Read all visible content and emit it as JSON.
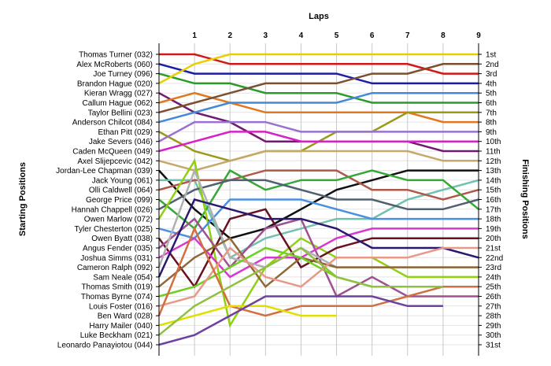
{
  "chart_data": {
    "type": "line",
    "title": "Laps",
    "xlabel": "Laps",
    "ylabel_left": "Starting Positions",
    "ylabel_right": "Finishing Positions",
    "x": [
      0,
      1,
      2,
      3,
      4,
      5,
      6,
      7,
      8,
      9
    ],
    "x_ticks": [
      "1",
      "2",
      "3",
      "4",
      "5",
      "6",
      "7",
      "8",
      "9"
    ],
    "xlim": [
      0,
      9
    ],
    "ylim": [
      1,
      31
    ],
    "grid": true,
    "left_labels": [
      "Thomas Turner (032)",
      "Alex McRoberts (060)",
      "Joe Turney (096)",
      "Brandon Hague (020)",
      "Kieran Wragg (027)",
      "Callum Hague (062)",
      "Taylor Bellini (023)",
      "Anderson Chilcot (084)",
      "Ethan Pitt (029)",
      "Jake Severs (046)",
      "Caden McQueen (049)",
      "Axel Slijepcevic (042)",
      "Jordan-Lee Chapman (039)",
      "Jack Young (061)",
      "Olli Caldwell (064)",
      "George Price (099)",
      "Hannah Chappell (026)",
      "Owen Marlow (072)",
      "Tyler Chesterton (025)",
      "Owen Byatt (038)",
      "Angus Fender (035)",
      "Joshua Simms (031)",
      "Cameron Ralph (092)",
      "Sam Neale (054)",
      "Thomas Smith (019)",
      "Thomas Byrne (074)",
      "Louis Foster (016)",
      "Ben Ward (028)",
      "Harry Mailer (040)",
      "Luke Beckham (021)",
      "Leonardo Panayiotou (044)"
    ],
    "right_labels": [
      "1st",
      "2nd",
      "3rd",
      "4th",
      "5th",
      "6th",
      "7th",
      "8th",
      "9th",
      "10th",
      "11th",
      "12th",
      "13th",
      "14th",
      "15th",
      "16th",
      "17th",
      "18th",
      "19th",
      "20th",
      "21st",
      "22nd",
      "23rd",
      "24th",
      "25th",
      "26th",
      "27th",
      "28th",
      "29th",
      "30th",
      "31st"
    ],
    "series": [
      {
        "color": "#d01818",
        "values": [
          1,
          1,
          2,
          2,
          2,
          2,
          2,
          2,
          3,
          3
        ]
      },
      {
        "color": "#1c1ca8",
        "values": [
          2,
          3,
          3,
          3,
          3,
          3,
          4,
          4,
          4,
          4
        ]
      },
      {
        "color": "#2a9a2a",
        "values": [
          3,
          4,
          4,
          5,
          5,
          5,
          6,
          6,
          6,
          6
        ]
      },
      {
        "color": "#e8d000",
        "values": [
          4,
          2,
          1,
          1,
          1,
          1,
          1,
          1,
          1,
          1
        ]
      },
      {
        "color": "#701a70",
        "values": [
          5,
          7,
          8,
          10,
          10,
          10,
          10,
          10,
          11,
          11
        ]
      },
      {
        "color": "#e07820",
        "values": [
          6,
          5,
          6,
          7,
          7,
          7,
          7,
          7,
          8,
          8
        ]
      },
      {
        "color": "#7a5030",
        "values": [
          7,
          6,
          5,
          4,
          4,
          4,
          3,
          3,
          2,
          2
        ]
      },
      {
        "color": "#4488d8",
        "values": [
          8,
          7,
          6,
          6,
          6,
          6,
          5,
          5,
          5,
          5
        ]
      },
      {
        "color": "#9a9a18",
        "values": [
          9,
          11,
          12,
          11,
          11,
          9,
          9,
          7,
          7,
          7
        ]
      },
      {
        "color": "#9a70d0",
        "values": [
          10,
          8,
          8,
          8,
          9,
          9,
          9,
          9,
          9,
          9
        ]
      },
      {
        "color": "#d820c8",
        "values": [
          11,
          10,
          9,
          9,
          10,
          10,
          10,
          10,
          10,
          10
        ]
      },
      {
        "color": "#c8a868",
        "values": [
          12,
          13,
          12,
          11,
          11,
          11,
          11,
          11,
          12,
          12
        ]
      },
      {
        "color": "#101010",
        "values": [
          13,
          17,
          20,
          19,
          17,
          15,
          14,
          13,
          13,
          13
        ]
      },
      {
        "color": "#70c0b0",
        "values": [
          14,
          14,
          22,
          20,
          19,
          18,
          18,
          16,
          15,
          14
        ]
      },
      {
        "color": "#b05848",
        "values": [
          15,
          14,
          14,
          13,
          13,
          13,
          15,
          15,
          16,
          15
        ]
      },
      {
        "color": "#36a836",
        "values": [
          16,
          19,
          13,
          15,
          14,
          14,
          13,
          14,
          14,
          17
        ]
      },
      {
        "color": "#506070",
        "values": [
          17,
          15,
          14,
          14,
          15,
          16,
          16,
          17,
          17,
          16
        ]
      },
      {
        "color": "#90d010",
        "values": [
          18,
          12,
          29,
          23,
          20,
          22,
          22,
          24,
          24,
          24
        ]
      },
      {
        "color": "#4a90e0",
        "values": [
          19,
          20,
          16,
          16,
          16,
          17,
          18,
          18,
          18,
          18
        ]
      },
      {
        "color": "#6a1020",
        "values": [
          20,
          25,
          18,
          17,
          23,
          21,
          20,
          20,
          20,
          20
        ]
      },
      {
        "color": "#a05090",
        "values": [
          21,
          18,
          23,
          19,
          18,
          26,
          24,
          26,
          26,
          26
        ]
      },
      {
        "color": "#d838d0",
        "values": [
          22,
          20,
          24,
          22,
          22,
          20,
          19,
          19,
          19,
          19
        ]
      },
      {
        "color": "#b0b0b0",
        "values": [
          23,
          13,
          22,
          23,
          21,
          23,
          23,
          23,
          23,
          23
        ]
      },
      {
        "color": "#2a1870",
        "values": [
          24,
          16,
          17,
          18,
          18,
          19,
          21,
          21,
          21,
          22
        ]
      },
      {
        "color": "#906838",
        "values": [
          25,
          22,
          20,
          25,
          22,
          23,
          23,
          23,
          23,
          23
        ]
      },
      {
        "color": "#70d020",
        "values": [
          26,
          25,
          23,
          21,
          22,
          24,
          25,
          25,
          25,
          25
        ]
      },
      {
        "color": "#e89888",
        "values": [
          27,
          26,
          21,
          24,
          25,
          22,
          22,
          22,
          21,
          21
        ]
      },
      {
        "color": "#d07040",
        "values": [
          28,
          19,
          27,
          28,
          27,
          27,
          27,
          26,
          25,
          25
        ]
      },
      {
        "color": "#e0e000",
        "values": [
          29,
          28,
          27,
          27,
          28,
          28,
          null,
          null,
          null,
          null
        ]
      },
      {
        "color": "#90c040",
        "values": [
          30,
          27,
          25,
          23,
          21,
          24,
          25,
          25,
          25,
          null
        ]
      },
      {
        "color": "#7040a0",
        "values": [
          31,
          30,
          28,
          26,
          26,
          26,
          26,
          27,
          27,
          null
        ]
      }
    ]
  }
}
